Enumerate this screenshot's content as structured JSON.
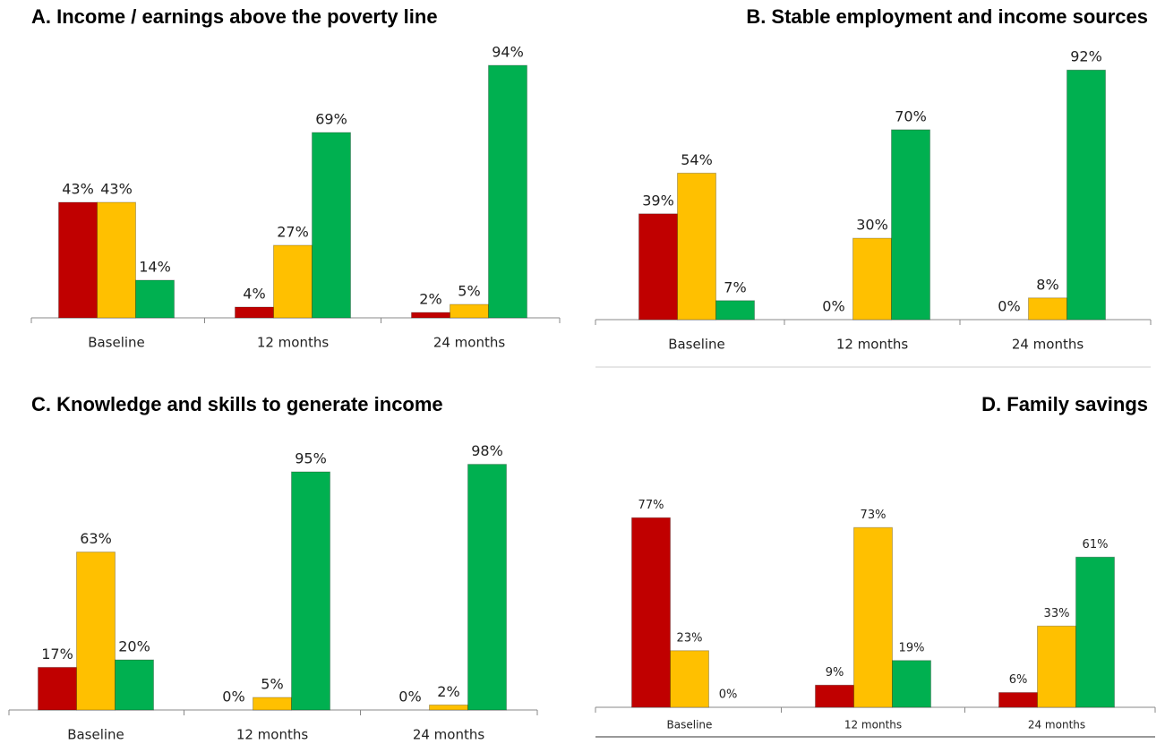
{
  "chart_data": [
    {
      "type": "bar",
      "title": "A. Income / earnings above the poverty line",
      "categories": [
        "Baseline",
        "12 months",
        "24 months"
      ],
      "series": [
        {
          "color": "#c00000",
          "values": [
            43,
            4,
            2
          ],
          "value_labels": [
            "43%",
            "4%",
            "2%"
          ]
        },
        {
          "color": "#ffc000",
          "values": [
            43,
            27,
            5
          ],
          "value_labels": [
            "43%",
            "27%",
            "5%"
          ]
        },
        {
          "color": "#00b050",
          "values": [
            14,
            69,
            94
          ],
          "value_labels": [
            "14%",
            "69%",
            "94%"
          ]
        }
      ]
    },
    {
      "type": "bar",
      "title": "B. Stable employment and income sources",
      "categories": [
        "Baseline",
        "12 months",
        "24 months"
      ],
      "series": [
        {
          "color": "#c00000",
          "values": [
            39,
            0,
            0
          ],
          "value_labels": [
            "39%",
            "0%",
            "0%"
          ]
        },
        {
          "color": "#ffc000",
          "values": [
            54,
            30,
            8
          ],
          "value_labels": [
            "54%",
            "30%",
            "8%"
          ]
        },
        {
          "color": "#00b050",
          "values": [
            7,
            70,
            92
          ],
          "value_labels": [
            "7%",
            "70%",
            "92%"
          ]
        }
      ]
    },
    {
      "type": "bar",
      "title": "C. Knowledge and skills to generate income",
      "categories": [
        "Baseline",
        "12 months",
        "24 months"
      ],
      "series": [
        {
          "color": "#c00000",
          "values": [
            17,
            0,
            0
          ],
          "value_labels": [
            "17%",
            "0%",
            "0%"
          ]
        },
        {
          "color": "#ffc000",
          "values": [
            63,
            5,
            2
          ],
          "value_labels": [
            "63%",
            "5%",
            "2%"
          ]
        },
        {
          "color": "#00b050",
          "values": [
            20,
            95,
            98
          ],
          "value_labels": [
            "20%",
            "95%",
            "98%"
          ]
        }
      ]
    },
    {
      "type": "bar",
      "title": "D. Family savings",
      "categories": [
        "Baseline",
        "12 months",
        "24 months"
      ],
      "series": [
        {
          "color": "#c00000",
          "values": [
            77,
            9,
            6
          ],
          "value_labels": [
            "77%",
            "9%",
            "6%"
          ]
        },
        {
          "color": "#ffc000",
          "values": [
            23,
            73,
            33
          ],
          "value_labels": [
            "23%",
            "73%",
            "33%"
          ]
        },
        {
          "color": "#00b050",
          "values": [
            0,
            19,
            61
          ],
          "value_labels": [
            "0%",
            "19%",
            "61%"
          ]
        }
      ]
    }
  ]
}
